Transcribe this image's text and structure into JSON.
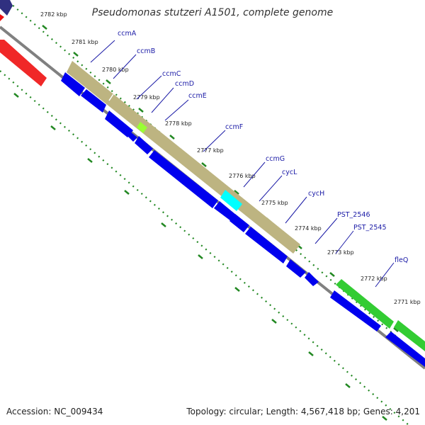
{
  "title": "Pseudomonas stutzeri A1501, complete genome",
  "accession": "Accession: NC_009434",
  "topology": "Topology: circular; Length: 4,567,418 bp; Genes: 4,201",
  "ticks": [
    {
      "label": "2782 kbp"
    },
    {
      "label": "2781 kbp"
    },
    {
      "label": "2780 kbp"
    },
    {
      "label": "2779 kbp"
    },
    {
      "label": "2778 kbp"
    },
    {
      "label": "2777 kbp"
    },
    {
      "label": "2776 kbp"
    },
    {
      "label": "2775 kbp"
    },
    {
      "label": "2774 kbp"
    },
    {
      "label": "2773 kbp"
    },
    {
      "label": "2772 kbp"
    },
    {
      "label": "2771 kbp"
    }
  ],
  "genes": [
    {
      "label": "ccmA"
    },
    {
      "label": "ccmB"
    },
    {
      "label": "ccmC"
    },
    {
      "label": "ccmD"
    },
    {
      "label": "ccmE"
    },
    {
      "label": "ccmF"
    },
    {
      "label": "ccmG"
    },
    {
      "label": "cycL"
    },
    {
      "label": "cycH"
    },
    {
      "label": "PST_2546"
    },
    {
      "label": "PST_2545"
    },
    {
      "label": "fleQ"
    }
  ],
  "colors": {
    "backbone": "#808080",
    "cds": "#0000ee",
    "operon": "#bdb481",
    "green_feature": "#33cc33",
    "red_feature": "#ee1111",
    "highlight_lime": "#99ff33",
    "highlight_cyan": "#00ffff",
    "tick": "#228822",
    "label_line": "#1a1aa6"
  }
}
